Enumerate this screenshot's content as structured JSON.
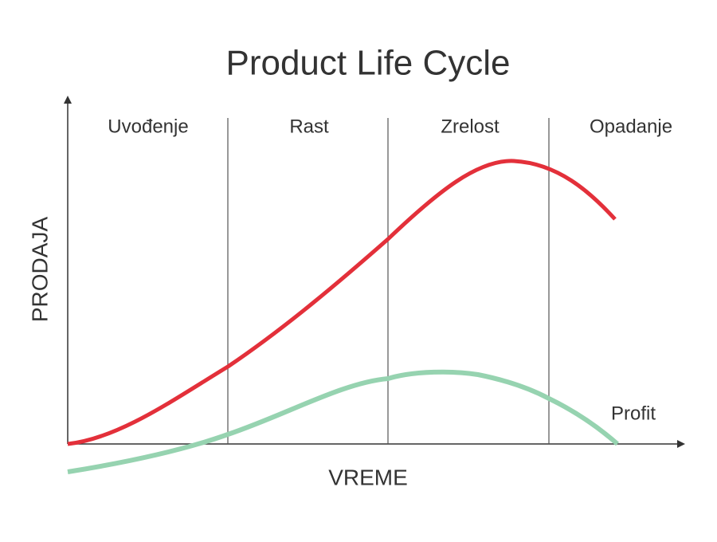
{
  "title": "Product Life Cycle",
  "y_axis_label": "PRODAJA",
  "x_axis_label": "VREME",
  "stages": [
    "Uvođenje",
    "Rast",
    "Zrelost",
    "Opadanje"
  ],
  "curve_labels": {
    "profit": "Profit"
  }
}
